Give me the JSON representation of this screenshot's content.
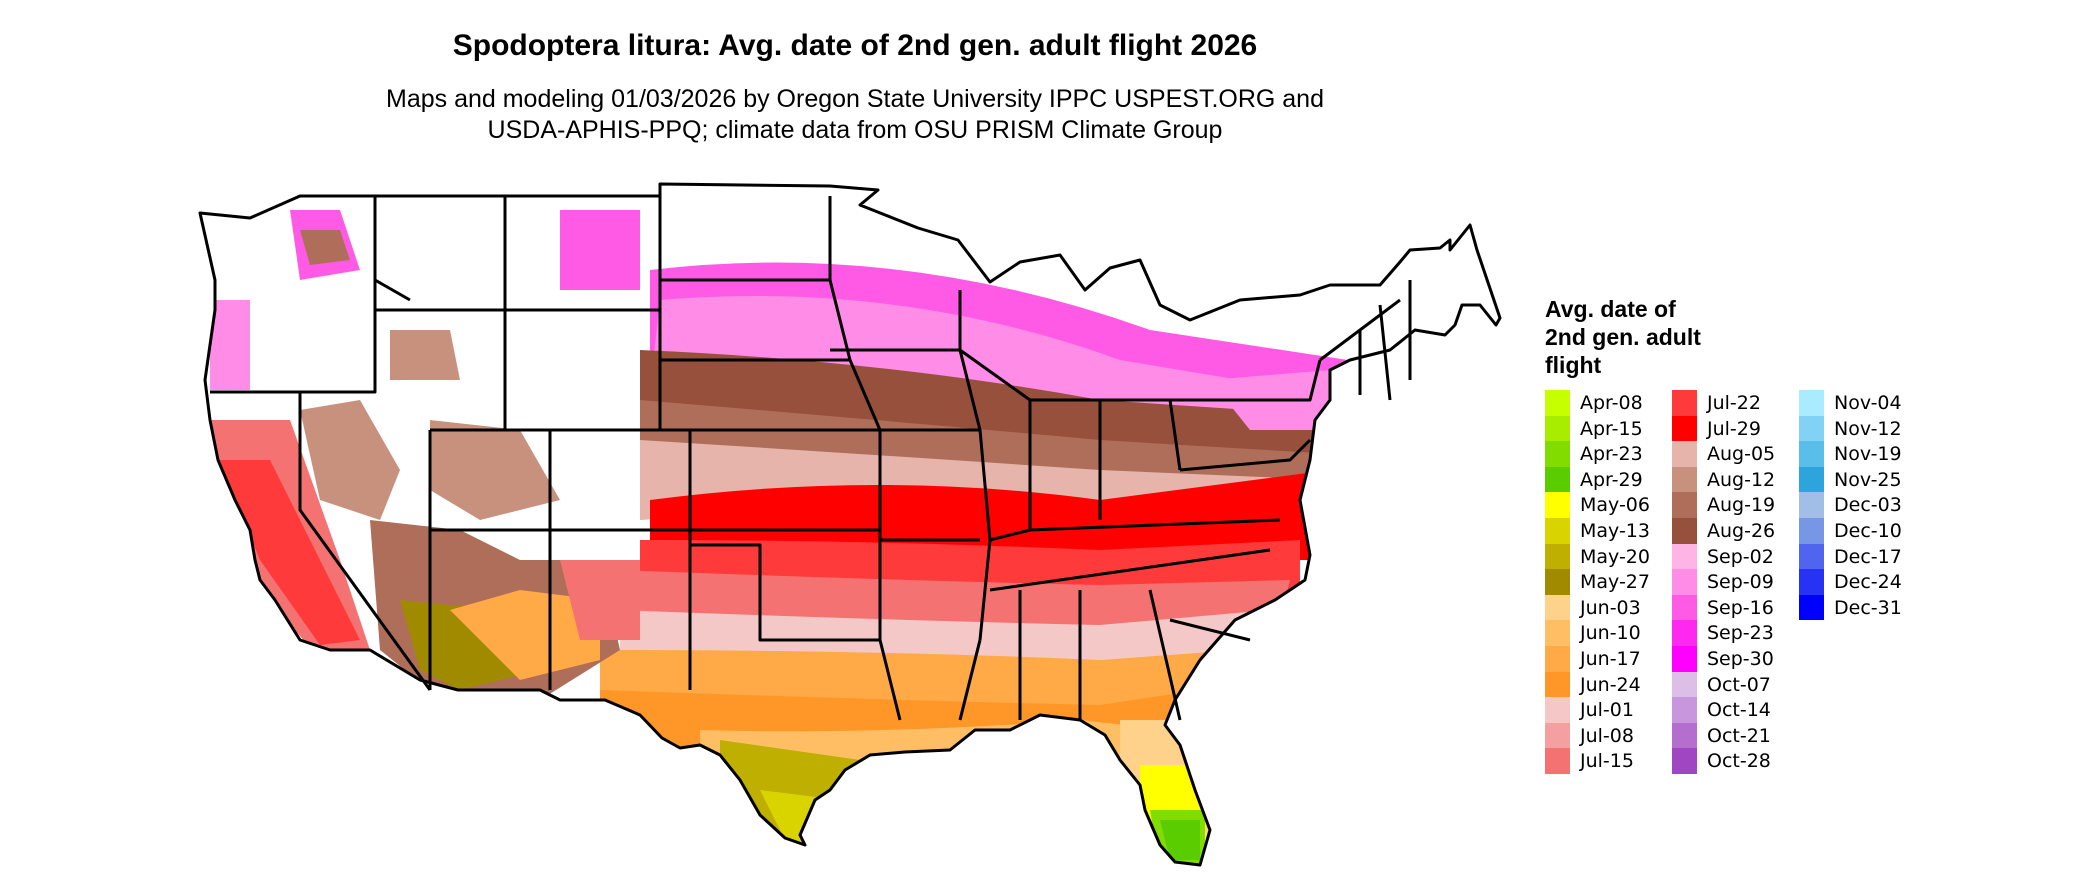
{
  "title": "Spodoptera litura: Avg. date of 2nd gen. adult flight 2026",
  "subtitle": {
    "line1": "Maps and modeling 01/03/2026 by Oregon State University IPPC USPEST.ORG and",
    "line2": "USDA-APHIS-PPQ; climate data from OSU PRISM Climate Group"
  },
  "legend": {
    "title_line1": "Avg. date of",
    "title_line2": "2nd gen. adult",
    "title_line3": "flight",
    "columns": [
      [
        {
          "label": "Apr-08",
          "color": "#c6ff00"
        },
        {
          "label": "Apr-15",
          "color": "#a8ec00"
        },
        {
          "label": "Apr-23",
          "color": "#82dc00"
        },
        {
          "label": "Apr-29",
          "color": "#5acd00"
        },
        {
          "label": "May-06",
          "color": "#ffff00"
        },
        {
          "label": "May-13",
          "color": "#d9d400"
        },
        {
          "label": "May-20",
          "color": "#bfaf00"
        },
        {
          "label": "May-27",
          "color": "#a08b00"
        },
        {
          "label": "Jun-03",
          "color": "#ffd28c"
        },
        {
          "label": "Jun-10",
          "color": "#ffbe64"
        },
        {
          "label": "Jun-17",
          "color": "#ffaa46"
        },
        {
          "label": "Jun-24",
          "color": "#ff9628"
        },
        {
          "label": "Jul-01",
          "color": "#f5c8c8"
        },
        {
          "label": "Jul-08",
          "color": "#f5a0a0"
        },
        {
          "label": "Jul-15",
          "color": "#f57272"
        }
      ],
      [
        {
          "label": "Jul-22",
          "color": "#ff3a3a"
        },
        {
          "label": "Jul-29",
          "color": "#ff0000"
        },
        {
          "label": "Aug-05",
          "color": "#e6b4aa"
        },
        {
          "label": "Aug-12",
          "color": "#c8917d"
        },
        {
          "label": "Aug-19",
          "color": "#af6e5a"
        },
        {
          "label": "Aug-26",
          "color": "#96503c"
        },
        {
          "label": "Sep-02",
          "color": "#ffb4e6"
        },
        {
          "label": "Sep-09",
          "color": "#ff8ce6"
        },
        {
          "label": "Sep-16",
          "color": "#ff5ae6"
        },
        {
          "label": "Sep-23",
          "color": "#ff28f0"
        },
        {
          "label": "Sep-30",
          "color": "#ff00ff"
        },
        {
          "label": "Oct-07",
          "color": "#dcbee6"
        },
        {
          "label": "Oct-14",
          "color": "#c896dc"
        },
        {
          "label": "Oct-21",
          "color": "#b46ecd"
        },
        {
          "label": "Oct-28",
          "color": "#a046c3"
        }
      ],
      [
        {
          "label": "Nov-04",
          "color": "#aaebff"
        },
        {
          "label": "Nov-12",
          "color": "#82d2f5"
        },
        {
          "label": "Nov-19",
          "color": "#5abeeb"
        },
        {
          "label": "Nov-25",
          "color": "#2da5dc"
        },
        {
          "label": "Dec-03",
          "color": "#a0bee6"
        },
        {
          "label": "Dec-10",
          "color": "#7896e6"
        },
        {
          "label": "Dec-17",
          "color": "#5064f0"
        },
        {
          "label": "Dec-24",
          "color": "#2832f5"
        },
        {
          "label": "Dec-31",
          "color": "#0000ff"
        }
      ]
    ]
  },
  "colors": {
    "border": "#000000",
    "unsuitable": "#ffffff"
  }
}
